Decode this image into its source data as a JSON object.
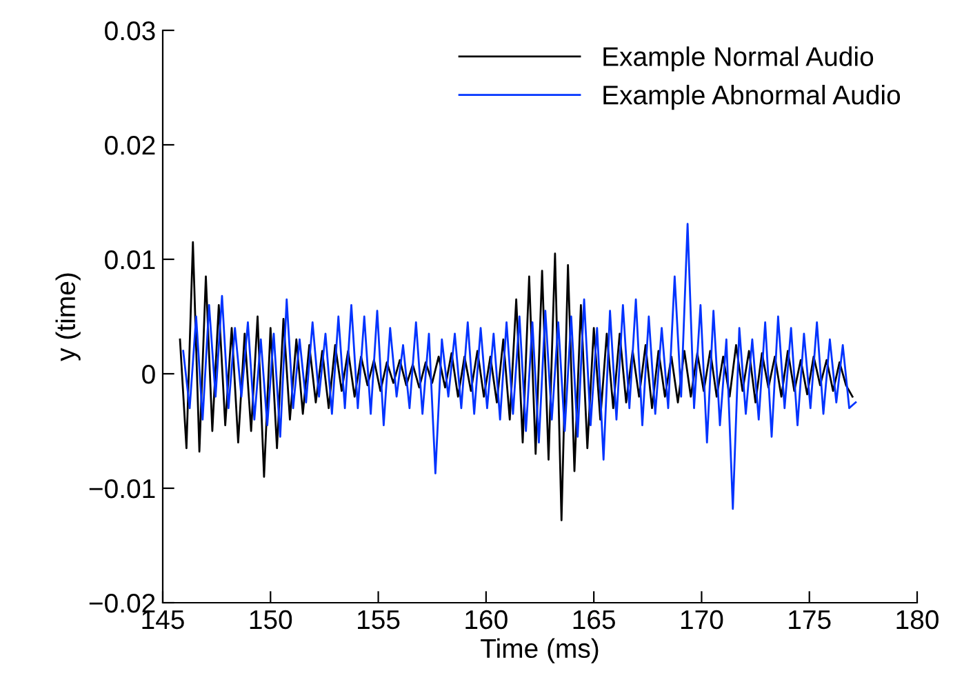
{
  "chart_data": {
    "type": "line",
    "xlabel": "Time (ms)",
    "ylabel": "y (time)",
    "xlim": [
      145,
      180
    ],
    "xticks": [
      145,
      150,
      155,
      160,
      165,
      170,
      175,
      180
    ],
    "ylim": [
      -0.02,
      0.03
    ],
    "yticks": [
      {
        "value": -0.02,
        "label": "−0.02"
      },
      {
        "value": -0.01,
        "label": "−0.01"
      },
      0,
      0.01,
      0.02,
      0.03
    ],
    "grid": false,
    "legend": "top right",
    "marker": "none",
    "line_style": "solid",
    "x": [
      145.8,
      146.1,
      146.4,
      146.7,
      147.0,
      147.3,
      147.6,
      147.9,
      148.2,
      148.5,
      148.8,
      149.1,
      149.4,
      149.7,
      150.0,
      150.3,
      150.6,
      150.9,
      151.2,
      151.5,
      151.8,
      152.1,
      152.4,
      152.7,
      153.0,
      153.3,
      153.6,
      153.9,
      154.2,
      154.5,
      154.8,
      155.1,
      155.4,
      155.7,
      156.0,
      156.3,
      156.6,
      156.9,
      157.2,
      157.5,
      157.8,
      158.1,
      158.4,
      158.7,
      159.0,
      159.3,
      159.6,
      159.9,
      160.2,
      160.5,
      160.8,
      161.1,
      161.4,
      161.7,
      162.0,
      162.3,
      162.6,
      162.9,
      163.2,
      163.5,
      163.8,
      164.1,
      164.4,
      164.7,
      165.0,
      165.3,
      165.6,
      165.9,
      166.2,
      166.5,
      166.8,
      167.1,
      167.4,
      167.7,
      168.0,
      168.3,
      168.6,
      168.9,
      169.2,
      169.5,
      169.8,
      170.1,
      170.4,
      170.7,
      171.0,
      171.3,
      171.6,
      171.9,
      172.2,
      172.5,
      172.8,
      173.1,
      173.4,
      173.7,
      174.0,
      174.3,
      174.6,
      174.9,
      175.2,
      175.5,
      175.8,
      176.1,
      176.4,
      176.7,
      177.0
    ],
    "series": [
      {
        "name": "Example Normal Audio",
        "color": "#000000",
        "values": [
          0.003,
          -0.0065,
          0.0115,
          -0.0068,
          0.0085,
          -0.005,
          0.006,
          -0.0045,
          0.004,
          -0.006,
          0.0035,
          -0.005,
          0.005,
          -0.009,
          0.004,
          -0.0065,
          0.0048,
          -0.004,
          0.003,
          -0.0035,
          0.0025,
          -0.0025,
          0.002,
          -0.003,
          0.0025,
          -0.0015,
          0.002,
          -0.002,
          0.0015,
          -0.001,
          0.0012,
          -0.0015,
          0.001,
          -0.0008,
          0.0012,
          -0.001,
          0.0008,
          -0.0012,
          0.001,
          -0.0008,
          0.0015,
          -0.0012,
          0.0018,
          -0.002,
          0.0015,
          -0.0015,
          0.002,
          -0.002,
          0.0015,
          -0.0025,
          0.003,
          -0.004,
          0.0065,
          -0.006,
          0.0085,
          -0.007,
          0.009,
          -0.0075,
          0.0105,
          -0.0128,
          0.0095,
          -0.0085,
          0.006,
          -0.0065,
          0.004,
          -0.004,
          0.0035,
          -0.003,
          0.0035,
          -0.0025,
          0.002,
          -0.002,
          0.0025,
          -0.003,
          0.002,
          -0.002,
          0.0015,
          -0.0025,
          0.002,
          -0.002,
          0.0018,
          -0.0015,
          0.002,
          -0.002,
          0.0015,
          -0.002,
          0.0025,
          -0.0015,
          0.002,
          -0.0025,
          0.0018,
          -0.0012,
          0.0015,
          -0.002,
          0.002,
          -0.0015,
          0.0012,
          -0.0018,
          0.0015,
          -0.001,
          0.0012,
          -0.0015,
          0.001,
          -0.001,
          -0.002
        ]
      },
      {
        "name": "Example Abnormal Audio",
        "color": "#0033ff",
        "x": [
          145.95,
          146.25,
          146.55,
          146.85,
          147.15,
          147.45,
          147.75,
          148.05,
          148.35,
          148.65,
          148.95,
          149.25,
          149.55,
          149.85,
          150.15,
          150.45,
          150.75,
          151.05,
          151.35,
          151.65,
          151.95,
          152.25,
          152.55,
          152.85,
          153.15,
          153.45,
          153.75,
          154.05,
          154.35,
          154.65,
          154.95,
          155.25,
          155.55,
          155.85,
          156.15,
          156.45,
          156.75,
          157.05,
          157.35,
          157.65,
          157.95,
          158.25,
          158.55,
          158.85,
          159.15,
          159.45,
          159.75,
          160.05,
          160.35,
          160.65,
          160.95,
          161.25,
          161.55,
          161.85,
          162.15,
          162.45,
          162.75,
          163.05,
          163.35,
          163.65,
          163.95,
          164.25,
          164.55,
          164.85,
          165.15,
          165.45,
          165.75,
          166.05,
          166.35,
          166.65,
          166.95,
          167.25,
          167.55,
          167.85,
          168.15,
          168.45,
          168.75,
          169.05,
          169.35,
          169.65,
          169.95,
          170.25,
          170.55,
          170.85,
          171.15,
          171.45,
          171.75,
          172.05,
          172.35,
          172.65,
          172.95,
          173.25,
          173.55,
          173.85,
          174.15,
          174.45,
          174.75,
          175.05,
          175.35,
          175.65,
          175.95,
          176.25,
          176.55,
          176.85,
          177.15
        ],
        "values": [
          0.002,
          -0.003,
          0.005,
          -0.004,
          0.006,
          -0.002,
          0.0068,
          -0.003,
          0.004,
          -0.002,
          0.0045,
          -0.004,
          0.003,
          -0.0045,
          0.0035,
          -0.0055,
          0.0065,
          -0.003,
          0.003,
          -0.0025,
          0.0045,
          -0.002,
          0.0035,
          -0.0035,
          0.005,
          -0.003,
          0.006,
          -0.003,
          0.005,
          -0.0035,
          0.0055,
          -0.0045,
          0.004,
          -0.002,
          0.0025,
          -0.003,
          0.0045,
          -0.0035,
          0.0035,
          -0.0087,
          0.003,
          -0.002,
          0.0035,
          -0.003,
          0.0045,
          -0.0035,
          0.004,
          -0.003,
          0.0035,
          -0.004,
          0.0045,
          -0.0035,
          0.005,
          -0.005,
          0.0045,
          -0.006,
          0.0055,
          -0.004,
          0.0045,
          -0.005,
          0.005,
          -0.0055,
          0.0065,
          -0.0045,
          0.004,
          -0.0075,
          0.0055,
          -0.004,
          0.006,
          -0.003,
          0.0065,
          -0.0045,
          0.005,
          -0.0035,
          0.004,
          -0.003,
          0.0085,
          -0.002,
          0.0131,
          -0.003,
          0.006,
          -0.006,
          0.0055,
          -0.0045,
          0.003,
          -0.0118,
          0.004,
          -0.0035,
          0.003,
          -0.004,
          0.0045,
          -0.0055,
          0.005,
          -0.003,
          0.004,
          -0.0045,
          0.0035,
          -0.003,
          0.0045,
          -0.0035,
          0.003,
          -0.0025,
          0.0025,
          -0.003,
          -0.0025
        ]
      }
    ]
  }
}
